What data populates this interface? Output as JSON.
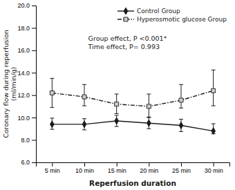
{
  "chart_data": {
    "type": "line",
    "categories": [
      "5 min",
      "10 min",
      "15 min",
      "20 min",
      "25 min",
      "30 min"
    ],
    "series": [
      {
        "name": "Control Group",
        "color": "#1a1a1a",
        "marker": "diamond",
        "line_style": "solid",
        "values": [
          9.4,
          9.4,
          9.7,
          9.5,
          9.3,
          8.8
        ],
        "err_upper": [
          0.55,
          0.5,
          0.5,
          0.55,
          0.55,
          0.65
        ],
        "err_lower": [
          0.45,
          0.5,
          0.5,
          0.5,
          0.55,
          0.25
        ]
      },
      {
        "name": "Hyperosmotic glucose Group",
        "color": "#1a1a1a",
        "marker": "square",
        "line_style": "dashdot",
        "values": [
          12.2,
          11.85,
          11.2,
          11.0,
          11.55,
          12.4
        ],
        "err_upper": [
          1.3,
          1.1,
          0.9,
          1.1,
          1.4,
          1.85
        ],
        "err_lower": [
          1.3,
          0.8,
          0.85,
          1.0,
          0.7,
          1.35
        ]
      }
    ],
    "ylim": [
      6.0,
      20.0
    ],
    "yticks": [
      {
        "value": 6,
        "label": "6.0"
      },
      {
        "value": 8,
        "label": "8.0"
      },
      {
        "value": 10,
        "label": "10.0"
      },
      {
        "value": 12,
        "label": "12.0"
      },
      {
        "value": 14,
        "label": "14.0"
      },
      {
        "value": 16,
        "label": "16.0"
      },
      {
        "value": 18,
        "label": "18.0"
      },
      {
        "value": 20,
        "label": "20.0"
      }
    ],
    "ylabel": "Coronary flow during reperfusion\n(ml/min/g)",
    "xlabel": "Reperfusion duration",
    "annotations": [
      "Group effect, P <0.001*",
      "Time effect, P= 0.993"
    ],
    "legend": "upper right",
    "grid": false
  }
}
